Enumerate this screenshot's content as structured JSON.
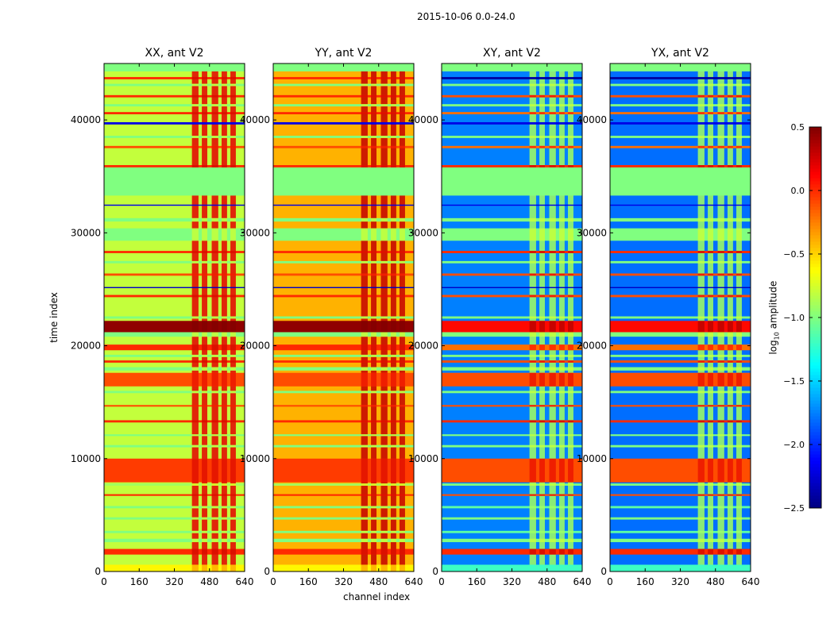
{
  "chart_data": {
    "type": "heatmap",
    "title": "2015-10-06 0.0-24.0",
    "xlabel": "channel index",
    "ylabel": "time index",
    "xlim": [
      0,
      640
    ],
    "ylim": [
      0,
      45000
    ],
    "xticks": [
      "0",
      "160",
      "320",
      "480",
      "640"
    ],
    "yticks": [
      "0",
      "10000",
      "20000",
      "30000",
      "40000"
    ],
    "ytick_values": [
      0,
      10000,
      20000,
      30000,
      40000
    ],
    "colorbar": {
      "label": "log10 amplitude",
      "label_main": "log",
      "label_sub": "10",
      "label_rest": " amplitude",
      "range": [
        -2.5,
        0.5
      ],
      "ticks": [
        "0.5",
        "0.0",
        "−0.5",
        "−1.0",
        "−1.5",
        "−2.0",
        "−2.5"
      ],
      "tick_values": [
        0.5,
        0.0,
        -0.5,
        -1.0,
        -1.5,
        -2.0,
        -2.5
      ],
      "colormap": "jet"
    },
    "panels": [
      {
        "title": "XX, ant V2",
        "base": -0.8,
        "rfi": 0.2
      },
      {
        "title": "YY, ant V2",
        "base": -0.4,
        "rfi": 0.3
      },
      {
        "title": "XY, ant V2",
        "base": -1.75,
        "rfi": -0.9
      },
      {
        "title": "YX, ant V2",
        "base": -1.8,
        "rfi": -0.9
      }
    ],
    "rfi_channels": [
      [
        400,
        430
      ],
      [
        445,
        470
      ],
      [
        490,
        520
      ],
      [
        535,
        560
      ],
      [
        575,
        600
      ]
    ],
    "bands": [
      {
        "t": [
          0,
          600
        ],
        "par": -0.6,
        "cross": -1.2
      },
      {
        "t": [
          1500,
          2000
        ],
        "par": 0.0,
        "cross": 0.0
      },
      {
        "t": [
          2600,
          2900
        ],
        "par": -1.0,
        "cross": -1.0
      },
      {
        "t": [
          3400,
          3600
        ],
        "par": -1.0,
        "cross": -1.1
      },
      {
        "t": [
          4600,
          4800
        ],
        "par": -1.0,
        "cross": -1.0
      },
      {
        "t": [
          5600,
          5800
        ],
        "par": -1.0,
        "cross": -1.1
      },
      {
        "t": [
          6700,
          6850
        ],
        "par": 0.0,
        "cross": -0.1
      },
      {
        "t": [
          7600,
          7800
        ],
        "par": -0.9,
        "cross": -1.0
      },
      {
        "t": [
          7900,
          10000
        ],
        "par": -0.05,
        "cross": -0.1
      },
      {
        "t": [
          11000,
          11200
        ],
        "par": -1.0,
        "cross": -1.0
      },
      {
        "t": [
          12000,
          12150
        ],
        "par": -1.0,
        "cross": -1.0
      },
      {
        "t": [
          13200,
          13400
        ],
        "par": 0.0,
        "cross": 0.0
      },
      {
        "t": [
          14600,
          14750
        ],
        "par": -0.1,
        "cross": -0.1
      },
      {
        "t": [
          15800,
          16000
        ],
        "par": -1.0,
        "cross": -1.0
      },
      {
        "t": [
          16400,
          17600
        ],
        "par": -0.1,
        "cross": -0.1
      },
      {
        "t": [
          17800,
          18100
        ],
        "par": -1.0,
        "cross": -1.0
      },
      {
        "t": [
          18500,
          18700
        ],
        "par": 0.0,
        "cross": -0.1
      },
      {
        "t": [
          19000,
          19200
        ],
        "par": -1.0,
        "cross": -1.0
      },
      {
        "t": [
          19600,
          20100
        ],
        "par": 0.0,
        "cross": -0.2
      },
      {
        "t": [
          20800,
          21200
        ],
        "par": -1.0,
        "cross": -1.0
      },
      {
        "t": [
          21200,
          22200
        ],
        "par": 0.45,
        "cross": 0.1
      },
      {
        "t": [
          22400,
          22600
        ],
        "par": -1.0,
        "cross": -1.0
      },
      {
        "t": [
          24300,
          24500
        ],
        "par": 0.0,
        "cross": -0.1
      },
      {
        "t": [
          25100,
          25200
        ],
        "par": -2.3,
        "cross": -2.3
      },
      {
        "t": [
          26200,
          26400
        ],
        "par": -0.1,
        "cross": -0.1
      },
      {
        "t": [
          27300,
          27500
        ],
        "par": -1.0,
        "cross": -1.0
      },
      {
        "t": [
          28200,
          28400
        ],
        "par": 0.0,
        "cross": 0.0
      },
      {
        "t": [
          29300,
          30400
        ],
        "par": -1.0,
        "cross": -1.0
      },
      {
        "t": [
          31000,
          31300
        ],
        "par": -1.0,
        "cross": -1.0
      },
      {
        "t": [
          32400,
          32500
        ],
        "par": -2.2,
        "cross": -2.2
      },
      {
        "t": [
          33300,
          35800
        ],
        "par": -1.0,
        "cross": -1.0,
        "flag": true
      },
      {
        "t": [
          35800,
          36000
        ],
        "par": 0.0,
        "cross": 0.0
      },
      {
        "t": [
          37500,
          37700
        ],
        "par": -0.1,
        "cross": -0.2
      },
      {
        "t": [
          38400,
          38600
        ],
        "par": -1.0,
        "cross": -1.0
      },
      {
        "t": [
          39600,
          39800
        ],
        "par": -2.2,
        "cross": -2.2
      },
      {
        "t": [
          40500,
          40700
        ],
        "par": 0.0,
        "cross": -0.2
      },
      {
        "t": [
          41200,
          41400
        ],
        "par": -1.0,
        "cross": -1.0
      },
      {
        "t": [
          42000,
          42200
        ],
        "par": 0.0,
        "cross": -0.1
      },
      {
        "t": [
          43000,
          43200
        ],
        "par": -1.0,
        "cross": -1.0
      },
      {
        "t": [
          43600,
          43800
        ],
        "par": 0.0,
        "cross": -2.4
      },
      {
        "t": [
          44300,
          45000
        ],
        "par": -1.0,
        "cross": -1.0,
        "flag": true
      }
    ]
  }
}
